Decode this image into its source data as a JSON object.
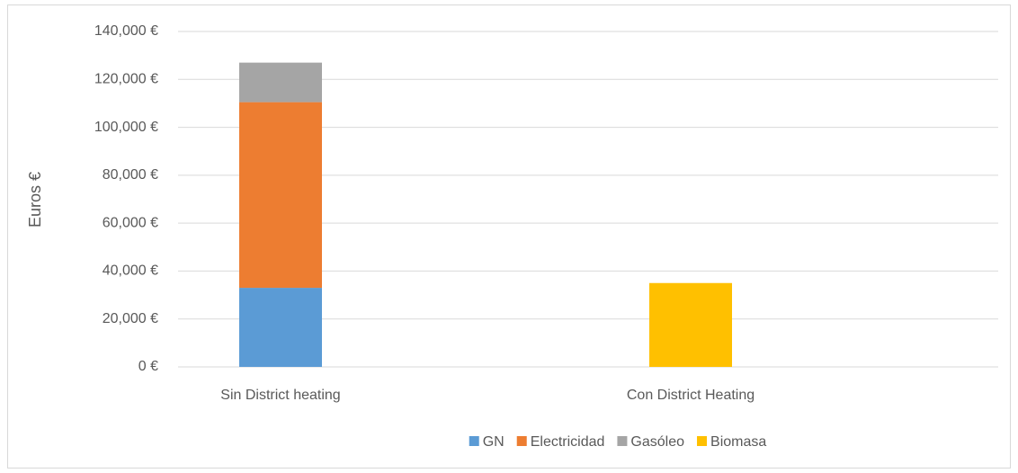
{
  "chart_data": {
    "type": "stacked_bar",
    "ylabel": "Euros €",
    "categories": [
      "Sin District heating",
      "Con District Heating"
    ],
    "series": [
      {
        "name": "GN",
        "color": "#5b9bd5",
        "values": [
          33000,
          null
        ]
      },
      {
        "name": "Electricidad",
        "color": "#ed7d31",
        "values": [
          77500,
          null
        ]
      },
      {
        "name": "Gasóleo",
        "color": "#a5a5a5",
        "values": [
          16500,
          null
        ]
      },
      {
        "name": "Biomasa",
        "color": "#ffc000",
        "values": [
          null,
          35000
        ]
      }
    ],
    "ylim": [
      0,
      140000
    ],
    "yticks": [
      {
        "value": 0,
        "label": "0 €"
      },
      {
        "value": 20000,
        "label": "20,000 €"
      },
      {
        "value": 40000,
        "label": "40,000 €"
      },
      {
        "value": 60000,
        "label": "60,000 €"
      },
      {
        "value": 80000,
        "label": "80,000 €"
      },
      {
        "value": 100000,
        "label": "100,000 €"
      },
      {
        "value": 120000,
        "label": "120,000 €"
      },
      {
        "value": 140000,
        "label": "140,000 €"
      }
    ],
    "grid": true,
    "legend": "bottom"
  }
}
